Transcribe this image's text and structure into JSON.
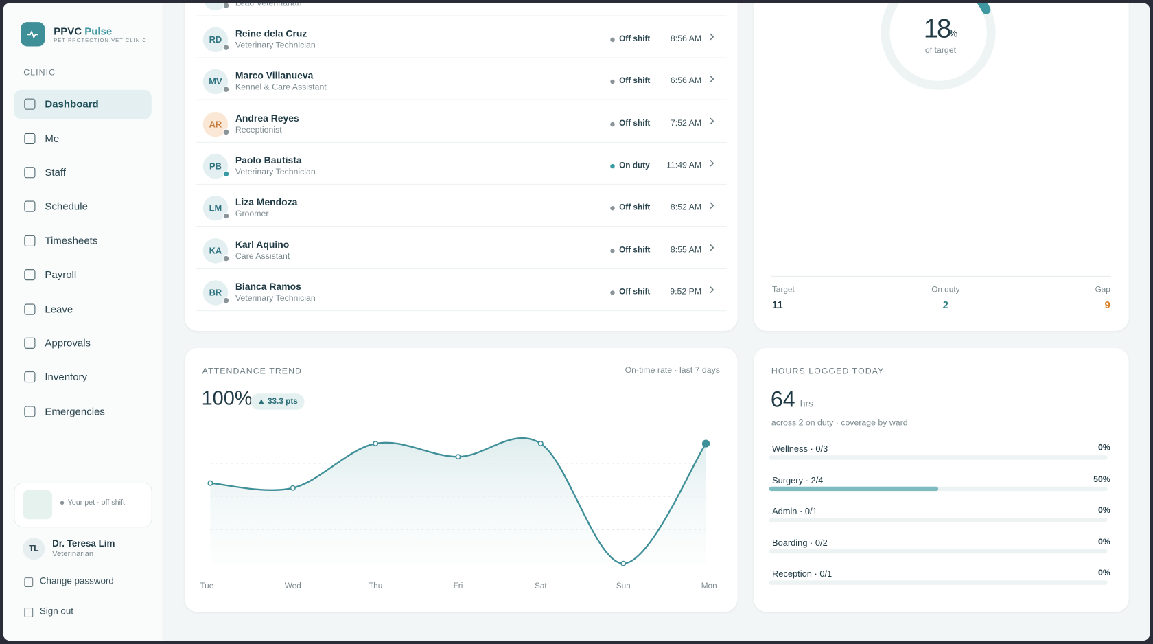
{
  "brand": {
    "name": "PPVC",
    "accent": "Pulse",
    "tagline": "PET PROTECTION VET CLINIC"
  },
  "sidebar": {
    "section": "CLINIC",
    "nav": [
      {
        "label": "Dashboard",
        "active": true
      },
      {
        "label": "Me"
      },
      {
        "label": "Staff"
      },
      {
        "label": "Schedule"
      },
      {
        "label": "Timesheets"
      },
      {
        "label": "Payroll"
      },
      {
        "label": "Leave"
      },
      {
        "label": "Approvals"
      },
      {
        "label": "Inventory"
      },
      {
        "label": "Emergencies"
      }
    ],
    "pet_status": "Your pet · off shift",
    "user": {
      "initials": "TL",
      "name": "Dr. Teresa Lim",
      "role": "Veterinarian"
    },
    "actions": [
      "Change password",
      "Sign out"
    ]
  },
  "staff": {
    "rows": [
      {
        "role": "Lead Veterinarian"
      },
      {
        "initials": "RD",
        "name": "Reine dela Cruz",
        "role": "Veterinary Technician",
        "status": "Off shift",
        "time": "8:56 AM"
      },
      {
        "initials": "MV",
        "name": "Marco Villanueva",
        "role": "Kennel & Care Assistant",
        "status": "Off shift",
        "time": "6:56 AM"
      },
      {
        "initials": "AR",
        "name": "Andrea Reyes",
        "role": "Receptionist",
        "status": "Off shift",
        "time": "7:52 AM",
        "avatar_bg": "#fbe7d6",
        "avatar_fg": "#c47a3c"
      },
      {
        "initials": "PB",
        "name": "Paolo Bautista",
        "role": "Veterinary Technician",
        "status": "On duty",
        "time": "11:49 AM",
        "status_color": "#3a9aa3"
      },
      {
        "initials": "LM",
        "name": "Liza Mendoza",
        "role": "Groomer",
        "status": "Off shift",
        "time": "8:52 AM"
      },
      {
        "initials": "KA",
        "name": "Karl Aquino",
        "role": "Care Assistant",
        "status": "Off shift",
        "time": "8:55 AM"
      },
      {
        "initials": "BR",
        "name": "Bianca Ramos",
        "role": "Veterinary Technician",
        "status": "Off shift",
        "time": "9:52 PM"
      }
    ]
  },
  "coverage": {
    "percent": 18,
    "unit": "%",
    "caption": "of target",
    "color": "#3f97a1",
    "stats": [
      {
        "label": "Target",
        "value": 11
      },
      {
        "label": "On duty",
        "value": 2,
        "color": "#2f7f88"
      },
      {
        "label": "Gap",
        "value": 9,
        "color": "#d9822b"
      }
    ]
  },
  "attendance": {
    "title": "ATTENDANCE TREND",
    "subtitle": "On-time rate · last 7 days",
    "headline": "100%",
    "delta": "▲ 33.3 pts",
    "chart_data": {
      "type": "line",
      "categories": [
        "Tue",
        "Wed",
        "Thu",
        "Fri",
        "Sat",
        "Sun",
        "Mon"
      ],
      "values": [
        67,
        63,
        100,
        89,
        100,
        0,
        100
      ],
      "color": "#3f8f99"
    }
  },
  "hours": {
    "title": "HOURS LOGGED TODAY",
    "total": 64,
    "unit": "hrs",
    "subtitle": "across 2 on duty · coverage by ward",
    "color": "#7fbcc0",
    "wards": [
      {
        "label": "Wellness · 0/3",
        "value": 0,
        "value_label": "0%"
      },
      {
        "label": "Surgery · 2/4",
        "value": 50,
        "value_label": "50%"
      },
      {
        "label": "Admin · 0/1",
        "value": 0,
        "value_label": "0%"
      },
      {
        "label": "Boarding · 0/2",
        "value": 0,
        "value_label": "0%"
      },
      {
        "label": "Reception · 0/1",
        "value": 0,
        "value_label": "0%"
      }
    ]
  }
}
